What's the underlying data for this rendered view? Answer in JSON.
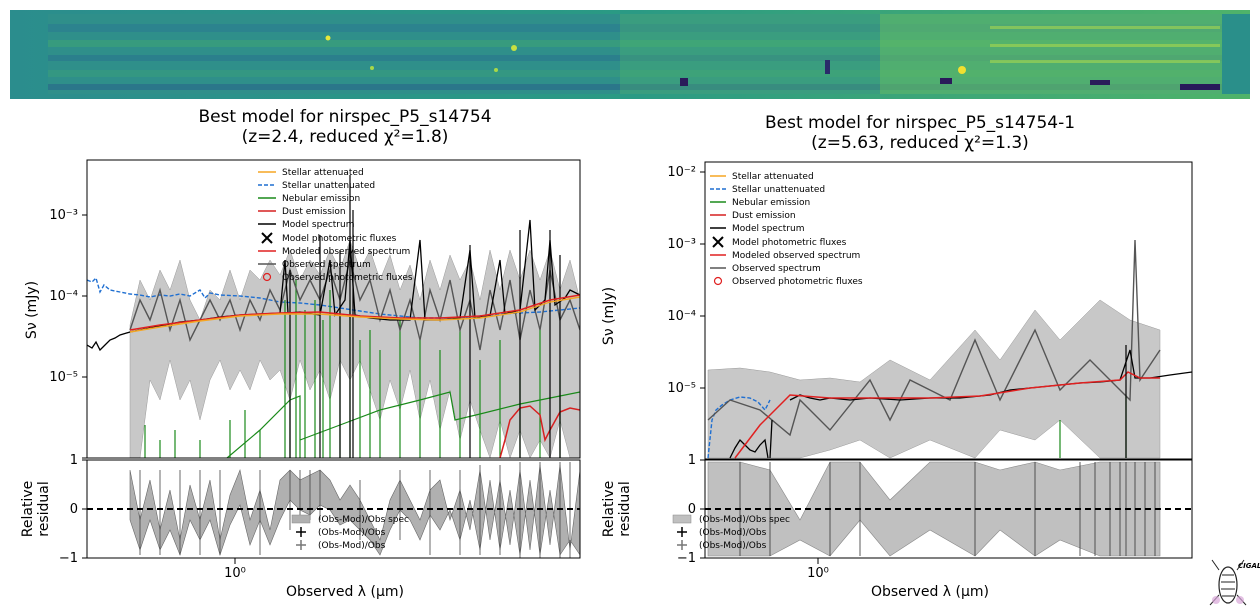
{
  "colors": {
    "stellar_attenuated": "#f5a623",
    "stellar_unattenuated": "#1f6fd1",
    "nebular_emission": "#1a8a1a",
    "dust_emission": "#d62020",
    "model_spectrum": "#000000",
    "modeled_observed_spectrum": "#e02020",
    "observed_spectrum": "#555555",
    "observed_photometric": "#e02020",
    "uncertainty_band": "#c8c8c8",
    "spectrum_strip_bg": "#2a8f8a"
  },
  "legend": {
    "stellar_attenuated": "Stellar attenuated",
    "stellar_unattenuated": "Stellar unattenuated",
    "nebular_emission": "Nebular emission",
    "dust_emission": "Dust emission",
    "model_spectrum": "Model spectrum",
    "model_photometric": "Model photometric fluxes",
    "modeled_observed": "Modeled observed spectrum",
    "observed_spectrum": "Observed spectrum",
    "observed_photometric": "Observed photometric fluxes",
    "resid_spec": "(Obs-Mod)/Obs spec",
    "resid_obs1": "(Obs-Mod)/Obs",
    "resid_obs2": "(Obs-Mod)/Obs"
  },
  "logo": {
    "text": "CIGALE"
  },
  "chart_data": [
    {
      "type": "line",
      "title": "Best model for nirspec_P5_s14754",
      "subtitle": "(z=2.4, reduced χ²=1.8)",
      "xlabel": "Observed λ (μm)",
      "ylabel": "Sν (mJy)",
      "resid_ylabel_1": "Relative",
      "resid_ylabel_2": "residual",
      "xscale": "log",
      "yscale": "log",
      "xlim": [
        0.45,
        7.0
      ],
      "ylim": [
        2.1e-06,
        0.0047
      ],
      "y_ticks": [
        "10⁻³",
        "10⁻⁴",
        "10⁻⁵"
      ],
      "y_tick_values": [
        0.001,
        0.0001,
        1e-05
      ],
      "x_tick_label": "10⁰",
      "resid_ylim": [
        -1,
        1
      ],
      "resid_ticks": [
        "1",
        "0",
        "−1"
      ],
      "legend_position": "top-center",
      "series": [
        {
          "name": "Stellar unattenuated",
          "x": [
            0.45,
            0.52,
            0.6,
            0.7,
            0.8,
            1.0,
            1.3,
            1.6,
            2.0,
            3.0,
            4.0,
            5.0,
            7.0
          ],
          "y": [
            0.00017,
            0.00014,
            0.00013,
            0.00012,
            0.000115,
            0.000105,
            0.0001,
            9e-05,
            8e-05,
            7e-05,
            6.5e-05,
            6e-05,
            5.5e-05
          ]
        },
        {
          "name": "Stellar attenuated",
          "x": [
            0.6,
            0.8,
            1.0,
            1.3,
            1.6,
            2.0,
            3.0,
            4.0,
            5.0,
            7.0
          ],
          "y": [
            4e-05,
            4.8e-05,
            5.5e-05,
            6e-05,
            6.2e-05,
            5.8e-05,
            5.2e-05,
            5.5e-05,
            6e-05,
            8e-05
          ]
        },
        {
          "name": "Nebular emission",
          "x": [
            0.9,
            1.4,
            1.45,
            2.5,
            2.8,
            4.5,
            7.0
          ],
          "y": [
            2.4e-06,
            1.1e-05,
            2.6e-06,
            6e-06,
            3.2e-06,
            4.5e-06,
            6.2e-06
          ]
        },
        {
          "name": "Dust emission",
          "x": [
            3.4,
            3.9,
            4.6,
            5.4,
            6.2,
            7.0
          ],
          "y": [
            2.2e-06,
            4e-06,
            2.5e-06,
            4.2e-06,
            3e-06,
            2.8e-06
          ]
        },
        {
          "name": "Model spectrum",
          "x": [
            0.45,
            0.5,
            0.55,
            0.6,
            0.7,
            0.8,
            1.0,
            1.2,
            1.5,
            2.0,
            2.5,
            3.0,
            4.0,
            5.0,
            6.0,
            7.0
          ],
          "y": [
            2e-05,
            2.5e-05,
            3e-05,
            3.5e-05,
            4e-05,
            4.5e-05,
            5.5e-05,
            6e-05,
            6e-05,
            5.5e-05,
            5e-05,
            5e-05,
            6e-05,
            8e-05,
            0.00011,
            9e-05
          ]
        },
        {
          "name": "Modeled observed spectrum",
          "x": [
            0.6,
            0.8,
            1.0,
            1.5,
            2.0,
            3.0,
            4.0,
            5.0,
            6.0,
            7.0
          ],
          "y": [
            3.8e-05,
            4.5e-05,
            5.5e-05,
            6e-05,
            5.6e-05,
            5e-05,
            6e-05,
            8e-05,
            0.00011,
            0.0001
          ]
        },
        {
          "name": "Observed spectrum",
          "x": [
            0.6,
            0.65,
            0.7,
            0.75,
            0.8,
            0.9,
            1.0,
            1.2,
            1.5,
            1.8,
            2.0,
            2.5,
            3.0,
            3.5,
            4.0,
            4.5,
            5.0,
            5.5,
            6.0,
            6.5,
            7.0
          ],
          "y": [
            4e-05,
            3e-05,
            8e-05,
            2e-05,
            6e-05,
            5e-05,
            7e-05,
            9e-05,
            0.00012,
            5e-05,
            7e-05,
            3e-05,
            4e-05,
            2e-05,
            6e-05,
            2e-05,
            8e-05,
            3e-05,
            0.0001,
            4e-05,
            9e-05
          ]
        }
      ]
    },
    {
      "type": "line",
      "title": "Best model for nirspec_P5_s14754-1",
      "subtitle": "(z=5.63, reduced χ²=1.3)",
      "xlabel": "Observed λ (μm)",
      "ylabel": "Sν (mJy)",
      "resid_ylabel_1": "Relative",
      "resid_ylabel_2": "residual",
      "xscale": "log",
      "yscale": "log",
      "xlim": [
        0.48,
        8.0
      ],
      "ylim": [
        2.7e-06,
        0.011
      ],
      "y_ticks": [
        "10⁻²",
        "10⁻³",
        "10⁻⁴",
        "10⁻⁵"
      ],
      "y_tick_values": [
        0.01,
        0.001,
        0.0001,
        1e-05
      ],
      "x_tick_label": "10⁰",
      "resid_ylim": [
        -1,
        1
      ],
      "resid_ticks": [
        "1",
        "0",
        "−1"
      ],
      "legend_position": "top-left",
      "series": [
        {
          "name": "Stellar unattenuated",
          "x": [
            0.6,
            0.65,
            0.7,
            0.75,
            0.8
          ],
          "y": [
            2.8e-06,
            6.5e-06,
            7.5e-06,
            7e-06,
            6.8e-06
          ]
        },
        {
          "name": "Nebular emission",
          "x": [
            3.9,
            4.6
          ],
          "y": [
            4.8e-06,
            5.2e-06
          ]
        },
        {
          "name": "Model spectrum",
          "x": [
            0.65,
            0.75,
            0.85,
            1.0,
            1.5,
            2.0,
            2.5,
            3.0,
            4.0,
            5.0,
            6.0,
            7.0,
            8.0
          ],
          "y": [
            4e-06,
            6e-06,
            8.5e-06,
            8e-06,
            8.2e-06,
            8e-06,
            8e-06,
            1e-05,
            1.2e-05,
            1.3e-05,
            1.4e-05,
            1.4e-05,
            1.6e-05
          ]
        },
        {
          "name": "Modeled observed spectrum",
          "x": [
            0.7,
            0.85,
            1.0,
            1.5,
            2.0,
            2.5,
            3.0,
            4.0,
            5.0,
            6.0
          ],
          "y": [
            4.5e-06,
            8.5e-06,
            8e-06,
            8.2e-06,
            8e-06,
            8.5e-06,
            1e-05,
            1.2e-05,
            1.3e-05,
            1.4e-05
          ]
        },
        {
          "name": "Observed spectrum",
          "x": [
            0.7,
            0.8,
            1.0,
            1.1,
            1.3,
            1.5,
            1.8,
            2.0,
            2.3,
            2.6,
            3.0,
            3.5,
            4.0,
            4.5,
            5.0,
            5.5,
            6.0
          ],
          "y": [
            7e-06,
            4e-06,
            9e-06,
            3e-06,
            1.2e-05,
            6e-06,
            1.5e-05,
            5e-06,
            2e-05,
            8e-06,
            2.5e-05,
            6e-06,
            2e-05,
            8e-06,
            0.0012,
            7e-06,
            1e-05
          ]
        }
      ]
    }
  ]
}
